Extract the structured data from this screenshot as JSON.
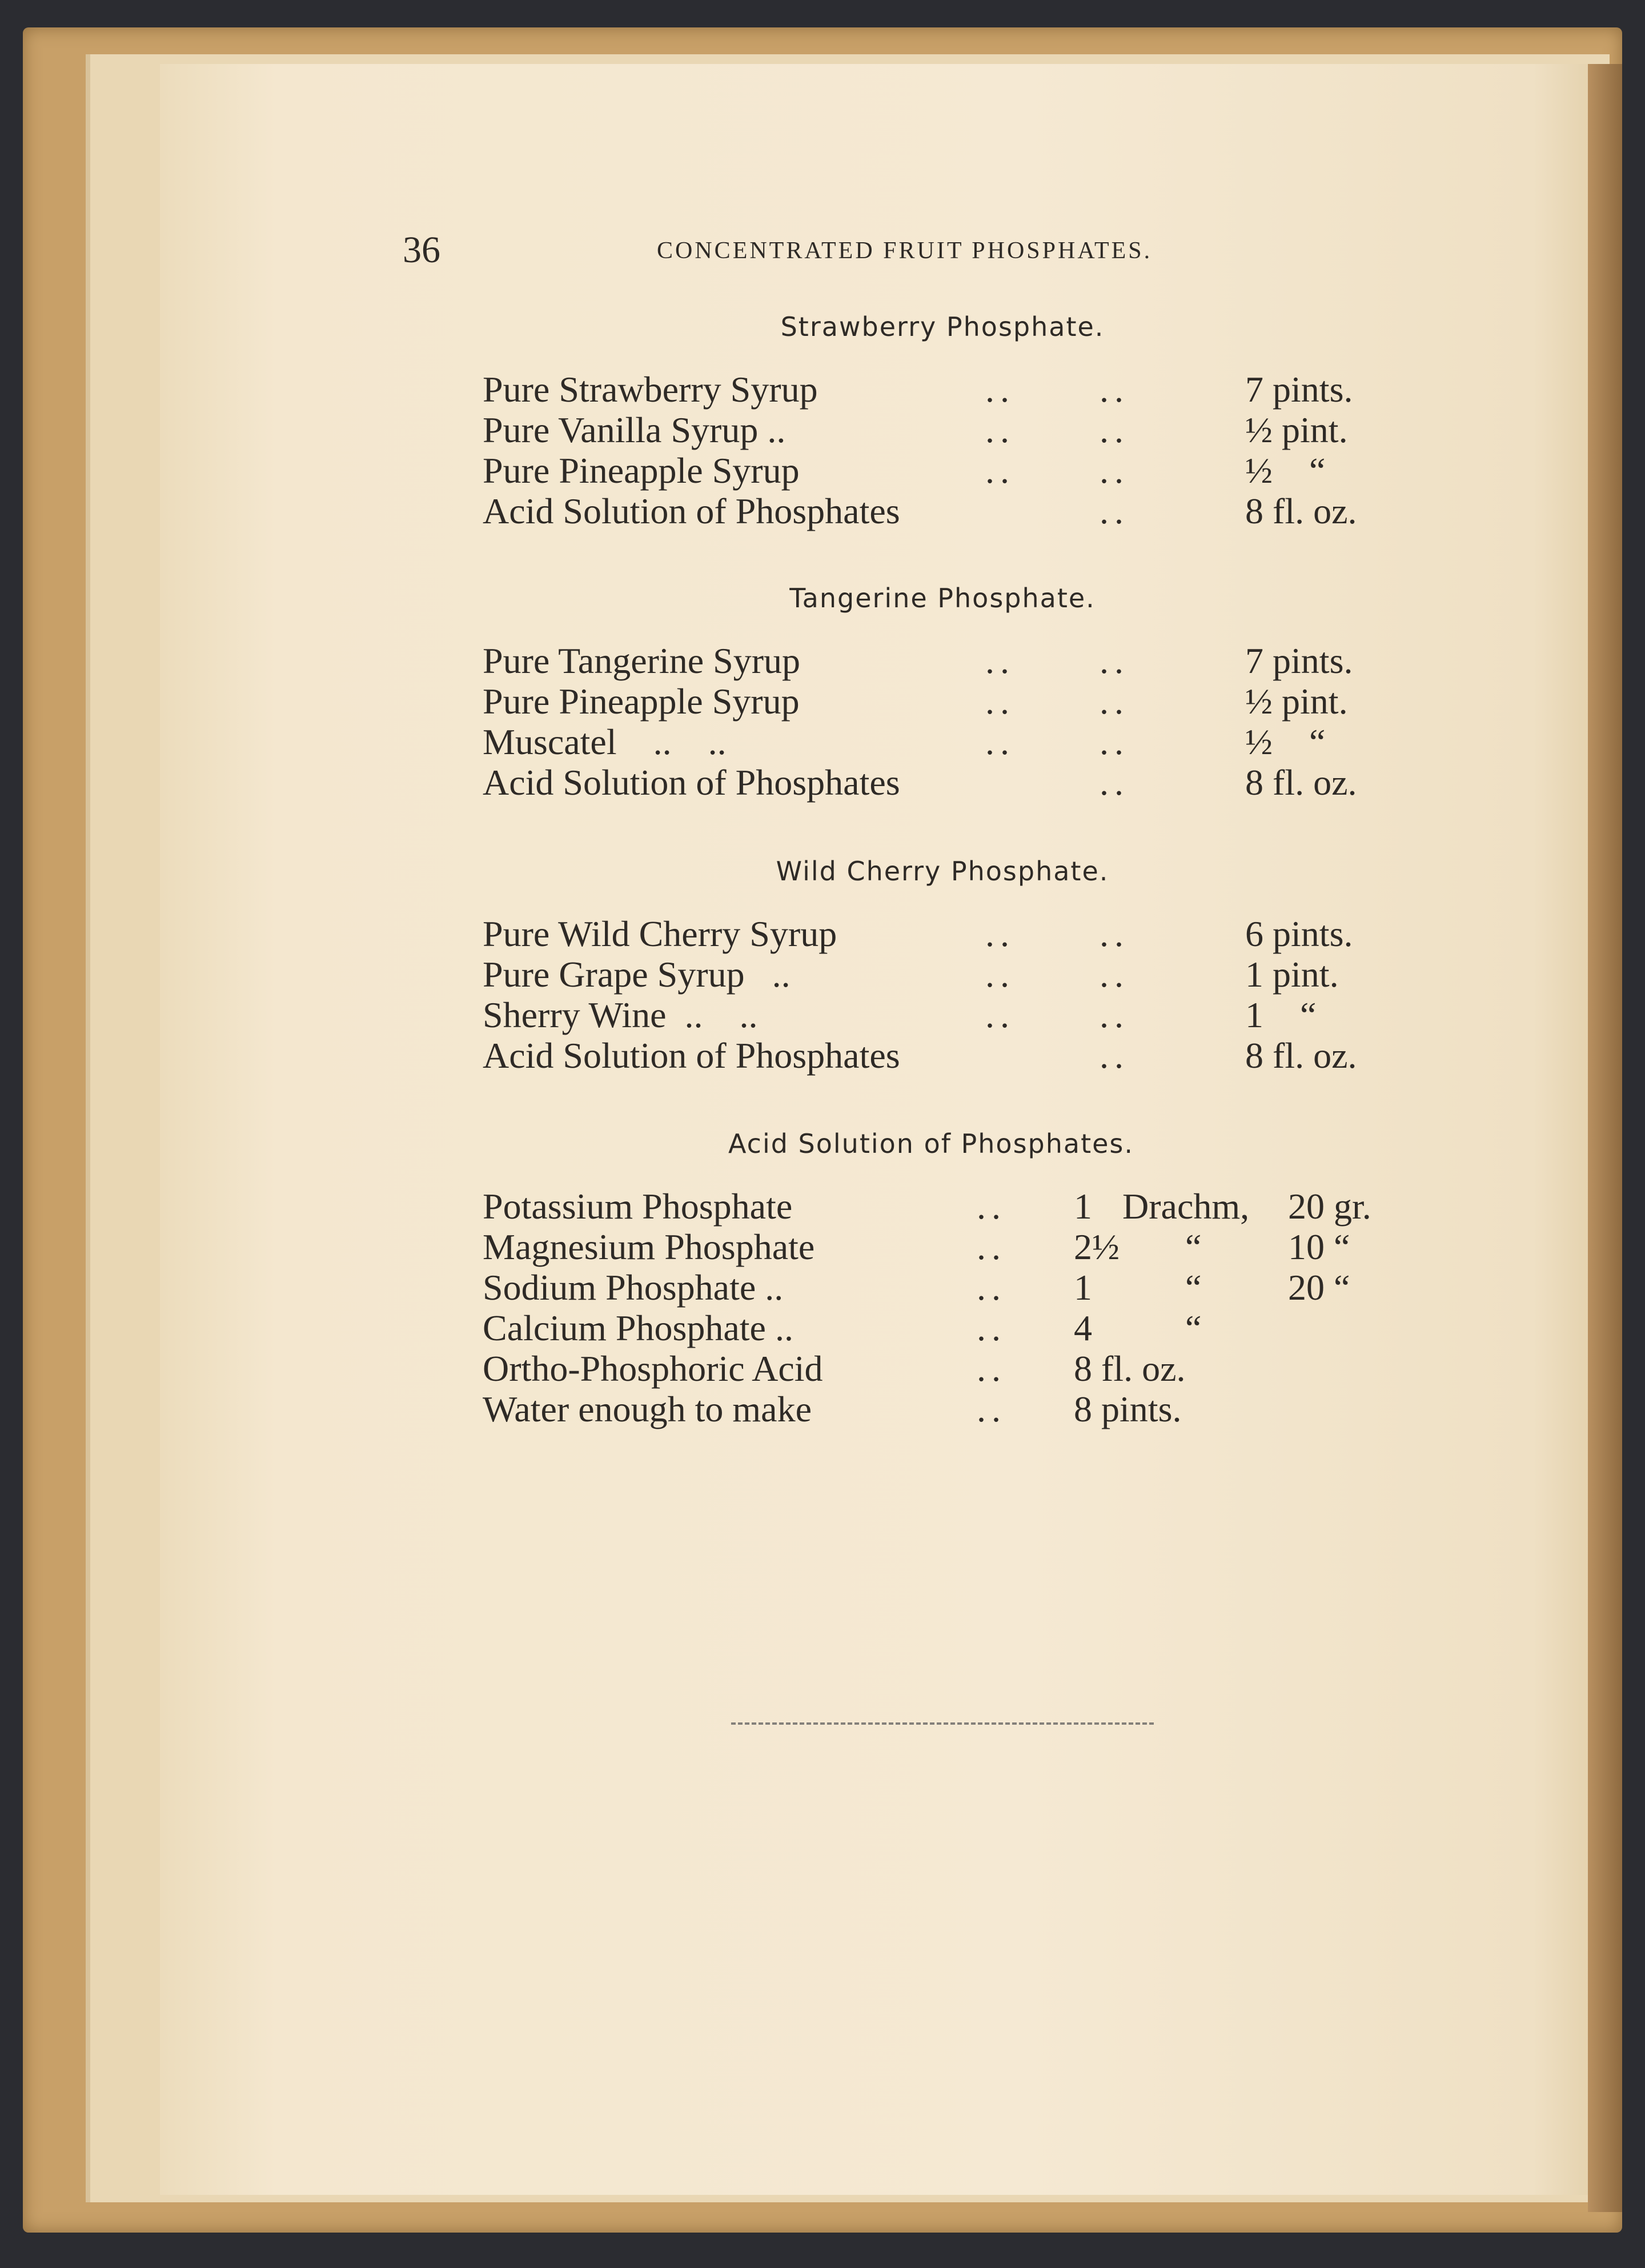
{
  "page_number": "36",
  "running_head": "CONCENTRATED FRUIT PHOSPHATES.",
  "sections": [
    {
      "title": "Strawberry Phosphate.",
      "rows": [
        {
          "name": "Pure Strawberry Syrup",
          "dots1": "..",
          "dots2": "..",
          "amount": "7 pints."
        },
        {
          "name": "Pure Vanilla Syrup ..",
          "dots1": "..",
          "dots2": "..",
          "amount": "½ pint."
        },
        {
          "name": "Pure Pineapple Syrup",
          "dots1": "..",
          "dots2": "..",
          "amount": "½    “"
        },
        {
          "name": "Acid Solution of Phosphates",
          "dots1": "",
          "dots2": "..",
          "amount": "8 fl. oz."
        }
      ]
    },
    {
      "title": "Tangerine Phosphate.",
      "rows": [
        {
          "name": "Pure Tangerine Syrup",
          "dots1": "..",
          "dots2": "..",
          "amount": "7 pints."
        },
        {
          "name": "Pure Pineapple Syrup",
          "dots1": "..",
          "dots2": "..",
          "amount": "½ pint."
        },
        {
          "name": "Muscatel    ..    ..",
          "dots1": "..",
          "dots2": "..",
          "amount": "½    “"
        },
        {
          "name": "Acid Solution of Phosphates",
          "dots1": "",
          "dots2": "..",
          "amount": "8 fl. oz."
        }
      ]
    },
    {
      "title": "Wild Cherry Phosphate.",
      "rows": [
        {
          "name": "Pure Wild Cherry Syrup",
          "dots1": "..",
          "dots2": "..",
          "amount": "6 pints."
        },
        {
          "name": "Pure Grape Syrup   ..",
          "dots1": "..",
          "dots2": "..",
          "amount": "1 pint."
        },
        {
          "name": "Sherry Wine  ..    ..",
          "dots1": "..",
          "dots2": "..",
          "amount": "1    “"
        },
        {
          "name": "Acid Solution of Phosphates",
          "dots1": "",
          "dots2": "..",
          "amount": "8 fl. oz."
        }
      ]
    }
  ],
  "acid": {
    "title": "Acid Solution of Phosphates.",
    "rows": [
      {
        "name": "Potassium Phosphate",
        "dots": "..",
        "qty": "1",
        "unit": "Drachm,",
        "grains": "20 gr."
      },
      {
        "name": "Magnesium Phosphate",
        "dots": "..",
        "qty": "2½",
        "unit": "“",
        "grains": "10 “"
      },
      {
        "name": "Sodium Phosphate ..",
        "dots": "..",
        "qty": "1",
        "unit": "“",
        "grains": "20 “"
      },
      {
        "name": "Calcium Phosphate ..",
        "dots": "..",
        "qty": "4",
        "unit": "“",
        "grains": ""
      },
      {
        "name": "Ortho-Phosphoric Acid",
        "dots": "..",
        "qty": "8 fl. oz.",
        "unit": "",
        "grains": ""
      },
      {
        "name": "Water enough to make",
        "dots": "..",
        "qty": "8 pints.",
        "unit": "",
        "grains": ""
      }
    ]
  },
  "colors": {
    "page": "#f5e9d3",
    "cover": "#c8a068",
    "ink": "#2e2a26",
    "background": "#2b2c31"
  }
}
